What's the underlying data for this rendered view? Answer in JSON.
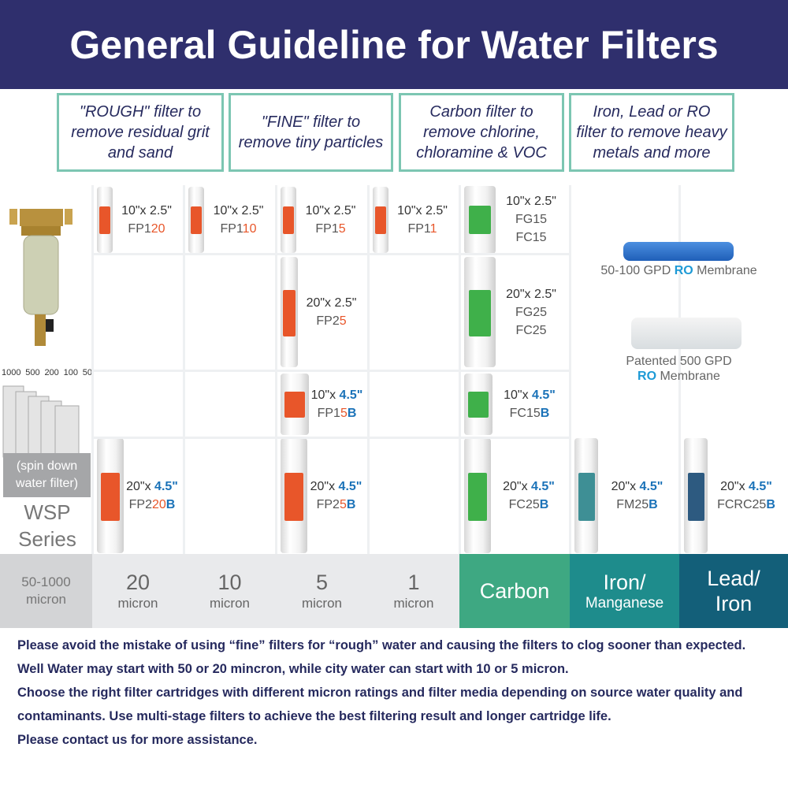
{
  "title": "General Guideline for Water Filters",
  "categories": [
    {
      "text": "\"ROUGH\" filter to remove residual grit and sand"
    },
    {
      "text": "\"FINE\" filter to remove tiny particles"
    },
    {
      "text": "Carbon filter to remove chlorine, chloramine & VOC"
    },
    {
      "text": "Iron, Lead or RO filter to remove heavy metals and more"
    }
  ],
  "colors": {
    "header": "#2f2f6d",
    "accent_orange": "#e8562a",
    "accent_blue": "#1a72b8",
    "ro_blue": "#1d9ad6",
    "carbon": "#3ea882",
    "iron": "#1e8c8c",
    "lead": "#135f79",
    "rough_gray": "#d3d4d6",
    "micron_gray": "#e9eaec"
  },
  "wsp": {
    "spin_labels": [
      "1000",
      "500",
      "200",
      "100",
      "50"
    ],
    "note": "(spin down water filter)",
    "series": "WSP Series"
  },
  "cells": [
    {
      "lines": [
        [
          {
            "t": "10\"x 2.5\""
          }
        ],
        [
          {
            "t": "FP1"
          },
          {
            "t": "20",
            "c": "o"
          }
        ]
      ],
      "tag": "orange"
    },
    {
      "lines": [
        [
          {
            "t": "10\"x 2.5\""
          }
        ],
        [
          {
            "t": "FP1"
          },
          {
            "t": "10",
            "c": "o"
          }
        ]
      ],
      "tag": "orange"
    },
    {
      "lines": [
        [
          {
            "t": "10\"x 2.5\""
          }
        ],
        [
          {
            "t": "FP1"
          },
          {
            "t": "5",
            "c": "o"
          }
        ]
      ],
      "tag": "orange"
    },
    {
      "lines": [
        [
          {
            "t": "10\"x 2.5\""
          }
        ],
        [
          {
            "t": "FP1"
          },
          {
            "t": "1",
            "c": "o"
          }
        ]
      ],
      "tag": "orange"
    },
    {
      "lines": [
        [
          {
            "t": "10\"x 2.5\""
          }
        ],
        [
          {
            "t": "FG15"
          }
        ],
        [
          {
            "t": "FC15"
          }
        ]
      ],
      "tag": "green"
    },
    {
      "lines": [
        [
          {
            "t": "20\"x 2.5\""
          }
        ],
        [
          {
            "t": "FP2"
          },
          {
            "t": "5",
            "c": "o"
          }
        ]
      ],
      "tag": "orange"
    },
    {
      "lines": [
        [
          {
            "t": "20\"x 2.5\""
          }
        ],
        [
          {
            "t": "FG25"
          }
        ],
        [
          {
            "t": "FC25"
          }
        ]
      ],
      "tag": "green"
    },
    {
      "lines": [
        [
          {
            "t": "10\"x "
          },
          {
            "t": "4.5\"",
            "c": "b"
          }
        ],
        [
          {
            "t": "FP1"
          },
          {
            "t": "5",
            "c": "o"
          },
          {
            "t": "B",
            "c": "b"
          }
        ]
      ],
      "tag": "orange"
    },
    {
      "lines": [
        [
          {
            "t": "10\"x "
          },
          {
            "t": "4.5\"",
            "c": "b"
          }
        ],
        [
          {
            "t": "FC15"
          },
          {
            "t": "B",
            "c": "b"
          }
        ]
      ],
      "tag": "green"
    },
    {
      "lines": [
        [
          {
            "t": "20\"x "
          },
          {
            "t": "4.5\"",
            "c": "b"
          }
        ],
        [
          {
            "t": "FP2"
          },
          {
            "t": "20",
            "c": "o"
          },
          {
            "t": "B",
            "c": "b"
          }
        ]
      ],
      "tag": "orange"
    },
    {
      "lines": [
        [
          {
            "t": "20\"x "
          },
          {
            "t": "4.5\"",
            "c": "b"
          }
        ],
        [
          {
            "t": "FP2"
          },
          {
            "t": "5",
            "c": "o"
          },
          {
            "t": "B",
            "c": "b"
          }
        ]
      ],
      "tag": "orange"
    },
    {
      "lines": [
        [
          {
            "t": "20\"x "
          },
          {
            "t": "4.5\"",
            "c": "b"
          }
        ],
        [
          {
            "t": "FC25"
          },
          {
            "t": "B",
            "c": "b"
          }
        ]
      ],
      "tag": "green"
    },
    {
      "lines": [
        [
          {
            "t": "20\"x "
          },
          {
            "t": "4.5\"",
            "c": "b"
          }
        ],
        [
          {
            "t": "FM25"
          },
          {
            "t": "B",
            "c": "b"
          }
        ]
      ],
      "tag": "teal"
    },
    {
      "lines": [
        [
          {
            "t": "20\"x "
          },
          {
            "t": "4.5\"",
            "c": "b"
          }
        ],
        [
          {
            "t": "FCRC25"
          },
          {
            "t": "B",
            "c": "b"
          }
        ]
      ],
      "tag": "navy"
    }
  ],
  "membranes": [
    [
      {
        "t": "50-100 GPD "
      },
      {
        "t": "RO",
        "c": "r"
      },
      {
        "t": " Membrane"
      }
    ],
    [
      {
        "t": "Patented 500 GPD"
      }
    ],
    [
      {
        "t": "RO",
        "c": "r"
      },
      {
        "t": " Membrane"
      }
    ]
  ],
  "footer": [
    {
      "big": "50-1000",
      "small": "micron"
    },
    {
      "big": "20",
      "small": "micron"
    },
    {
      "big": "10",
      "small": "micron"
    },
    {
      "big": "5",
      "small": "micron"
    },
    {
      "big": "1",
      "small": "micron"
    },
    {
      "big": "Carbon",
      "small": ""
    },
    {
      "big": "Iron/",
      "small": "Manganese"
    },
    {
      "big": "Lead/",
      "small": "Iron"
    }
  ],
  "notes": [
    "Please avoid the mistake of using “fine” filters for “rough” water and causing the filters to clog sooner than expected.",
    "Well Water may start with 50 or 20 mincron, while city water can start with 10 or 5 micron.",
    "Choose the right filter cartridges with different micron ratings and filter media depending on source water quality and contaminants. Use multi-stage filters to achieve the best filtering result and longer cartridge life.",
    "Please contact us for more assistance."
  ]
}
